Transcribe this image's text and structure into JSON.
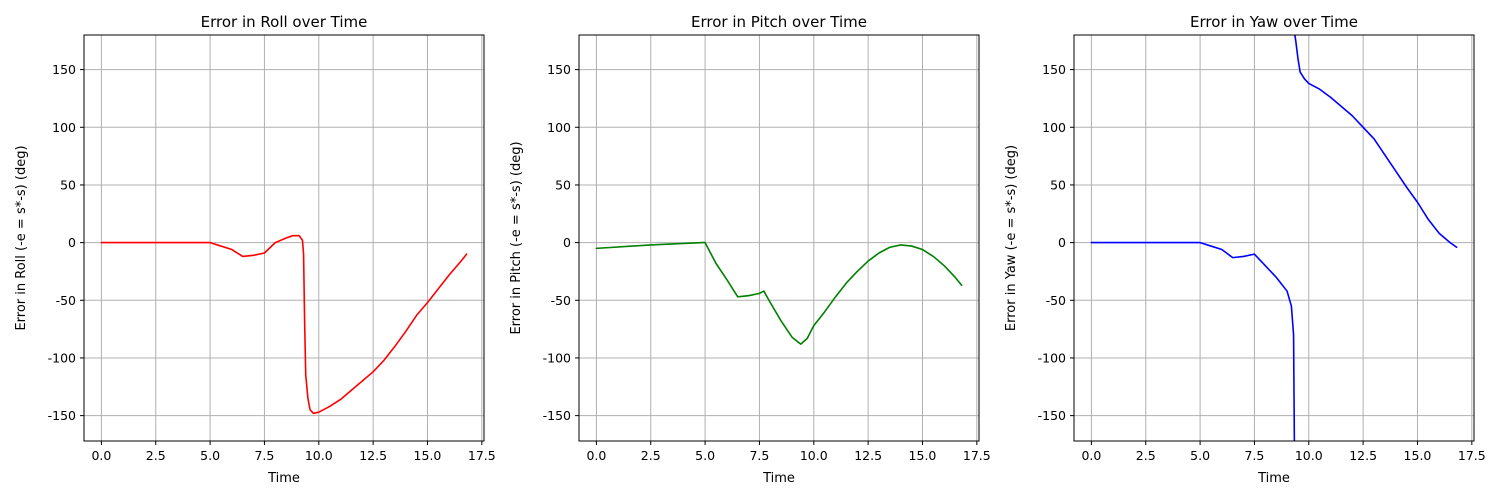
{
  "chart_data": [
    {
      "type": "line",
      "title": "Error in Roll over Time",
      "xlabel": "Time",
      "ylabel": "Error in Roll (-e = s*-s) (deg)",
      "xlim": [
        -0.8,
        17.6
      ],
      "ylim": [
        -172,
        180
      ],
      "xticks": [
        "0.0",
        "2.5",
        "5.0",
        "7.5",
        "10.0",
        "12.5",
        "15.0",
        "17.5"
      ],
      "yticks": [
        "-150",
        "-100",
        "-50",
        "0",
        "50",
        "100",
        "150"
      ],
      "grid": true,
      "series": [
        {
          "color": "#ff0000",
          "x": [
            0,
            2.5,
            5.0,
            5.5,
            6.0,
            6.5,
            7.0,
            7.5,
            8.0,
            8.5,
            8.8,
            9.1,
            9.25,
            9.3,
            9.35,
            9.4,
            9.5,
            9.6,
            9.75,
            10.0,
            10.5,
            11.0,
            11.5,
            12.0,
            12.5,
            13.0,
            13.5,
            14.0,
            14.5,
            15.0,
            15.5,
            16.0,
            16.5,
            16.8
          ],
          "y": [
            0,
            0,
            0,
            -3,
            -6,
            -12,
            -11,
            -9,
            0,
            4,
            6,
            6,
            2,
            -10,
            -70,
            -115,
            -135,
            -145,
            -148,
            -147,
            -142,
            -136,
            -128,
            -120,
            -112,
            -102,
            -90,
            -77,
            -63,
            -52,
            -40,
            -28,
            -17,
            -10
          ]
        }
      ]
    },
    {
      "type": "line",
      "title": "Error in Pitch over Time",
      "xlabel": "Time",
      "ylabel": "Error in Pitch (-e = s*-s) (deg)",
      "xlim": [
        -0.8,
        17.6
      ],
      "ylim": [
        -172,
        180
      ],
      "xticks": [
        "0.0",
        "2.5",
        "5.0",
        "7.5",
        "10.0",
        "12.5",
        "15.0",
        "17.5"
      ],
      "yticks": [
        "-150",
        "-100",
        "-50",
        "0",
        "50",
        "100",
        "150"
      ],
      "grid": true,
      "series": [
        {
          "color": "#008000",
          "x": [
            0,
            2.5,
            4.9,
            5.0,
            5.5,
            6.0,
            6.5,
            7.0,
            7.5,
            7.7,
            8.0,
            8.5,
            9.0,
            9.4,
            9.7,
            10.0,
            10.5,
            11.0,
            11.5,
            12.0,
            12.5,
            13.0,
            13.5,
            14.0,
            14.5,
            15.0,
            15.5,
            16.0,
            16.5,
            16.8
          ],
          "y": [
            -5,
            -2,
            0,
            0,
            -18,
            -32,
            -47,
            -46,
            -44,
            -42,
            -52,
            -68,
            -82,
            -88,
            -83,
            -72,
            -60,
            -47,
            -35,
            -25,
            -16,
            -9,
            -4,
            -2,
            -3,
            -6,
            -12,
            -20,
            -30,
            -37
          ]
        }
      ]
    },
    {
      "type": "line",
      "title": "Error in Yaw over Time",
      "xlabel": "Time",
      "ylabel": "Error in Yaw (-e = s*-s) (deg)",
      "xlim": [
        -0.8,
        17.6
      ],
      "ylim": [
        -172,
        180
      ],
      "xticks": [
        "0.0",
        "2.5",
        "5.0",
        "7.5",
        "10.0",
        "12.5",
        "15.0",
        "17.5"
      ],
      "yticks": [
        "-150",
        "-100",
        "-50",
        "0",
        "50",
        "100",
        "150"
      ],
      "grid": true,
      "series": [
        {
          "color": "#0000ff",
          "x": [
            0,
            2.5,
            5.0,
            5.5,
            6.0,
            6.5,
            7.0,
            7.5,
            8.0,
            8.5,
            9.0,
            9.2,
            9.3,
            9.32,
            9.34
          ],
          "y": [
            0,
            0,
            0,
            -3,
            -6,
            -13,
            -12,
            -10,
            -20,
            -30,
            -42,
            -55,
            -80,
            -130,
            -180
          ]
        },
        {
          "color": "#0000ff",
          "x": [
            9.34,
            9.36,
            9.4,
            9.5,
            9.6,
            9.8,
            10.0,
            10.5,
            11.0,
            11.5,
            12.0,
            12.5,
            13.0,
            13.5,
            14.0,
            14.5,
            15.0,
            15.5,
            16.0,
            16.5,
            16.8
          ],
          "y": [
            180,
            180,
            175,
            160,
            148,
            142,
            138,
            133,
            126,
            118,
            110,
            100,
            90,
            76,
            62,
            48,
            35,
            20,
            8,
            0,
            -4
          ]
        }
      ]
    }
  ]
}
